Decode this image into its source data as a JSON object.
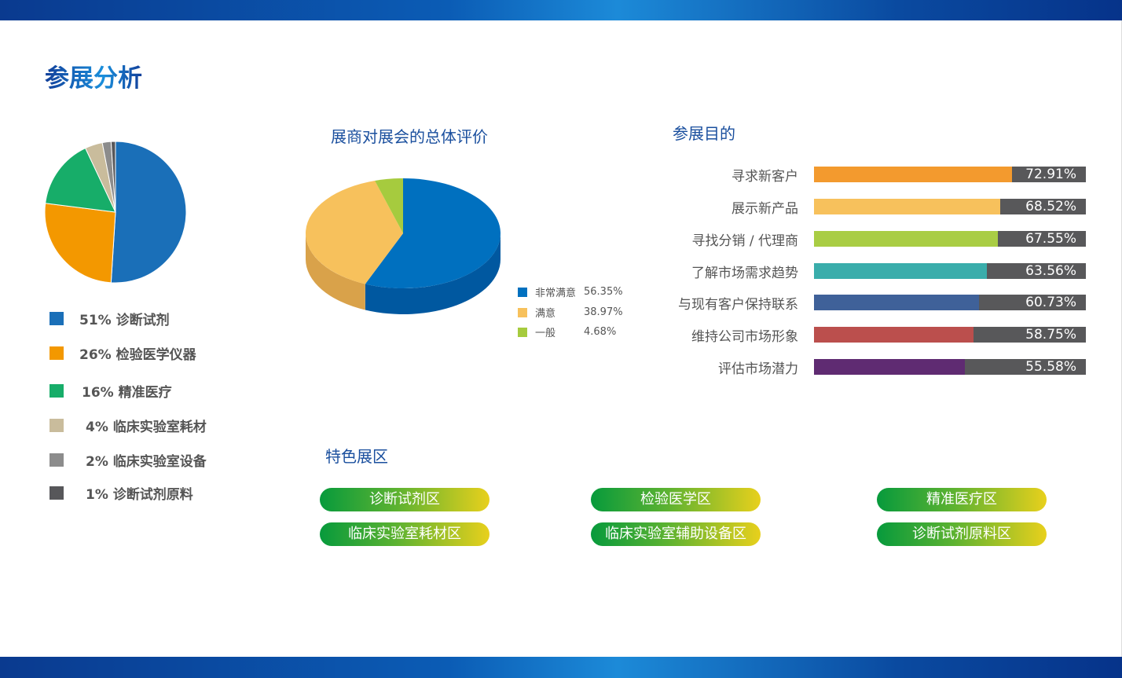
{
  "page_title": "参展分析",
  "chart_data": [
    {
      "type": "pie",
      "categories": [
        "诊断试剂",
        "检验医学仪器",
        "精准医疗",
        "临床实验室耗材",
        "临床实验室设备",
        "诊断试剂原料"
      ],
      "values": [
        51,
        26,
        16,
        4,
        2,
        1
      ],
      "labels": [
        "51% 诊断试剂",
        "26% 检验医学仪器",
        "16% 精准医疗",
        "4% 临床实验室耗材",
        "2% 临床实验室设备",
        "1% 诊断试剂原料"
      ],
      "colors": [
        "#1a6fb8",
        "#f39800",
        "#17ad69",
        "#c9bc9c",
        "#8c8c8c",
        "#57575a"
      ],
      "legend": "bottom"
    },
    {
      "type": "pie",
      "style": "3d",
      "title": "展商对展会的总体评价",
      "categories": [
        "非常满意",
        "满意",
        "一般"
      ],
      "values": [
        56.35,
        38.97,
        4.68
      ],
      "value_labels": [
        "56.35%",
        "38.97%",
        "4.68%"
      ],
      "colors": [
        "#0070bf",
        "#f7c15c",
        "#a6cb3e"
      ],
      "legend": "bottom-right"
    },
    {
      "type": "bar",
      "orientation": "horizontal",
      "title": "参展目的",
      "categories": [
        "寻求新客户",
        "展示新产品",
        "寻找分销 / 代理商",
        "了解市场需求趋势",
        "与现有客户保持联系",
        "维持公司市场形象",
        "评估市场潜力"
      ],
      "values": [
        72.91,
        68.52,
        67.55,
        63.56,
        60.73,
        58.75,
        55.58
      ],
      "value_labels": [
        "72.91%",
        "68.52%",
        "67.55%",
        "63.56%",
        "60.73%",
        "58.75%",
        "55.58%"
      ],
      "xlim": [
        0,
        100
      ],
      "colors": [
        "#f39a2e",
        "#f7c15c",
        "#a9cd44",
        "#3aadab",
        "#3f6199",
        "#bb4f4d",
        "#5f2b72"
      ],
      "track_color": "#58585a"
    }
  ],
  "zones": {
    "title": "特色展区",
    "items": [
      "诊断试剂区",
      "检验医学区",
      "精准医疗区",
      "临床实验室耗材区",
      "临床实验室辅助设备区",
      "诊断试剂原料区"
    ]
  }
}
